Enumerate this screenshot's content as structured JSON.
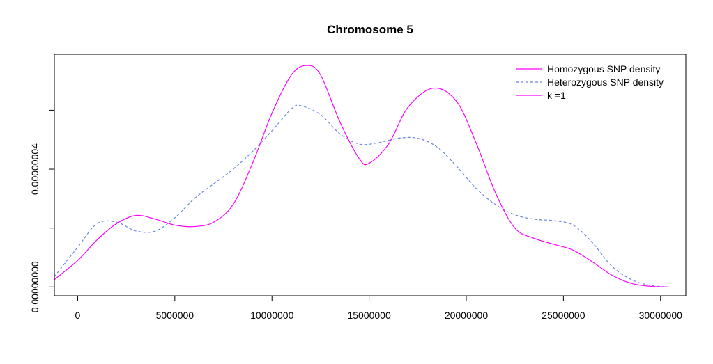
{
  "chart_data": {
    "type": "line",
    "title": "Chromosome 5",
    "xlabel": "",
    "ylabel": "",
    "xlim": [
      -1200000,
      31300000
    ],
    "ylim": [
      -3e-09,
      7.9e-08
    ],
    "x_ticks": [
      0,
      5000000,
      10000000,
      15000000,
      20000000,
      25000000,
      30000000
    ],
    "x_tick_labels": [
      "0",
      "5000000",
      "10000000",
      "15000000",
      "20000000",
      "25000000",
      "30000000"
    ],
    "y_ticks": [
      0,
      4e-08
    ],
    "y_tick_labels": [
      "0.00000000",
      "0.00000004"
    ],
    "y_minor_ticks": [
      2e-08,
      6e-08
    ],
    "grid": false,
    "legend_position": "top-right",
    "colors": {
      "homozygous": "#ff00ff",
      "heterozygous": "#6b85e8",
      "k": "#ff00ff"
    },
    "series": [
      {
        "name": "Homozygous SNP density",
        "style": "solid",
        "x": [
          -1200000,
          0,
          1000000,
          2000000,
          3000000,
          4000000,
          5000000,
          6000000,
          7000000,
          8000000,
          9000000,
          10000000,
          11000000,
          11800000,
          12500000,
          13500000,
          14500000,
          15000000,
          16000000,
          17000000,
          18300000,
          19500000,
          20500000,
          21500000,
          22500000,
          23500000,
          24500000,
          25500000,
          26500000,
          27500000,
          28500000,
          29500000,
          30400000
        ],
        "y": [
          2.5e-09,
          9e-09,
          1.6e-08,
          2.15e-08,
          2.43e-08,
          2.3e-08,
          2.1e-08,
          2.05e-08,
          2.2e-08,
          2.8e-08,
          4.2e-08,
          5.9e-08,
          7.2e-08,
          7.52e-08,
          7.2e-08,
          5.6e-08,
          4.35e-08,
          4.2e-08,
          4.85e-08,
          6.1e-08,
          6.75e-08,
          6.3e-08,
          4.9e-08,
          3.2e-08,
          2e-08,
          1.65e-08,
          1.45e-08,
          1.25e-08,
          8.5e-09,
          4e-09,
          1.2e-09,
          2e-10,
          0
        ]
      },
      {
        "name": "Heterozygous SNP density",
        "style": "dashed",
        "x": [
          -1200000,
          0,
          1000000,
          2000000,
          3000000,
          4000000,
          5000000,
          6000000,
          7000000,
          8000000,
          9000000,
          10000000,
          11000000,
          11500000,
          12500000,
          13500000,
          14500000,
          15500000,
          16500000,
          17500000,
          18500000,
          19500000,
          20500000,
          21500000,
          22500000,
          23500000,
          24500000,
          25500000,
          26500000,
          27500000,
          28500000,
          29500000,
          30400000
        ],
        "y": [
          3.5e-09,
          1.35e-08,
          2.15e-08,
          2.2e-08,
          1.9e-08,
          1.9e-08,
          2.35e-08,
          3e-08,
          3.5e-08,
          4e-08,
          4.6e-08,
          5.3e-08,
          6.05e-08,
          6.15e-08,
          5.85e-08,
          5.2e-08,
          4.85e-08,
          4.9e-08,
          5.05e-08,
          5.05e-08,
          4.75e-08,
          4.1e-08,
          3.35e-08,
          2.8e-08,
          2.45e-08,
          2.3e-08,
          2.25e-08,
          2.1e-08,
          1.5e-08,
          7e-09,
          2.5e-09,
          5e-10,
          0
        ]
      }
    ],
    "legend": [
      {
        "label": "Homozygous SNP density",
        "style": "solid",
        "color": "#ff00ff"
      },
      {
        "label": "Heterozygous SNP density",
        "style": "dashed",
        "color": "#6b85e8"
      },
      {
        "label": "k =1",
        "style": "solid",
        "color": "#ff00ff"
      }
    ]
  }
}
